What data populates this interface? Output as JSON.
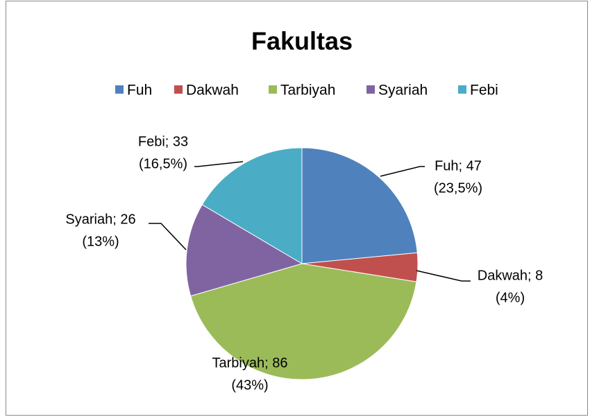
{
  "chart_data": {
    "type": "pie",
    "title": "Fakultas",
    "categories": [
      "Fuh",
      "Dakwah",
      "Tarbiyah",
      "Syariah",
      "Febi"
    ],
    "values": [
      47,
      8,
      86,
      26,
      33
    ],
    "value_labels": [
      "Fuh; 47",
      "Dakwah; 8",
      "Tarbiyah; 86",
      "Syariah; 26",
      "Febi; 33"
    ],
    "percent_labels": [
      "(23,5%)",
      "(4%)",
      "(43%)",
      "(13%)",
      "(16,5%)"
    ],
    "colors": [
      "#4f81bd",
      "#c0504d",
      "#9bbb59",
      "#8064a2",
      "#4bacc6"
    ],
    "legend": "top"
  }
}
